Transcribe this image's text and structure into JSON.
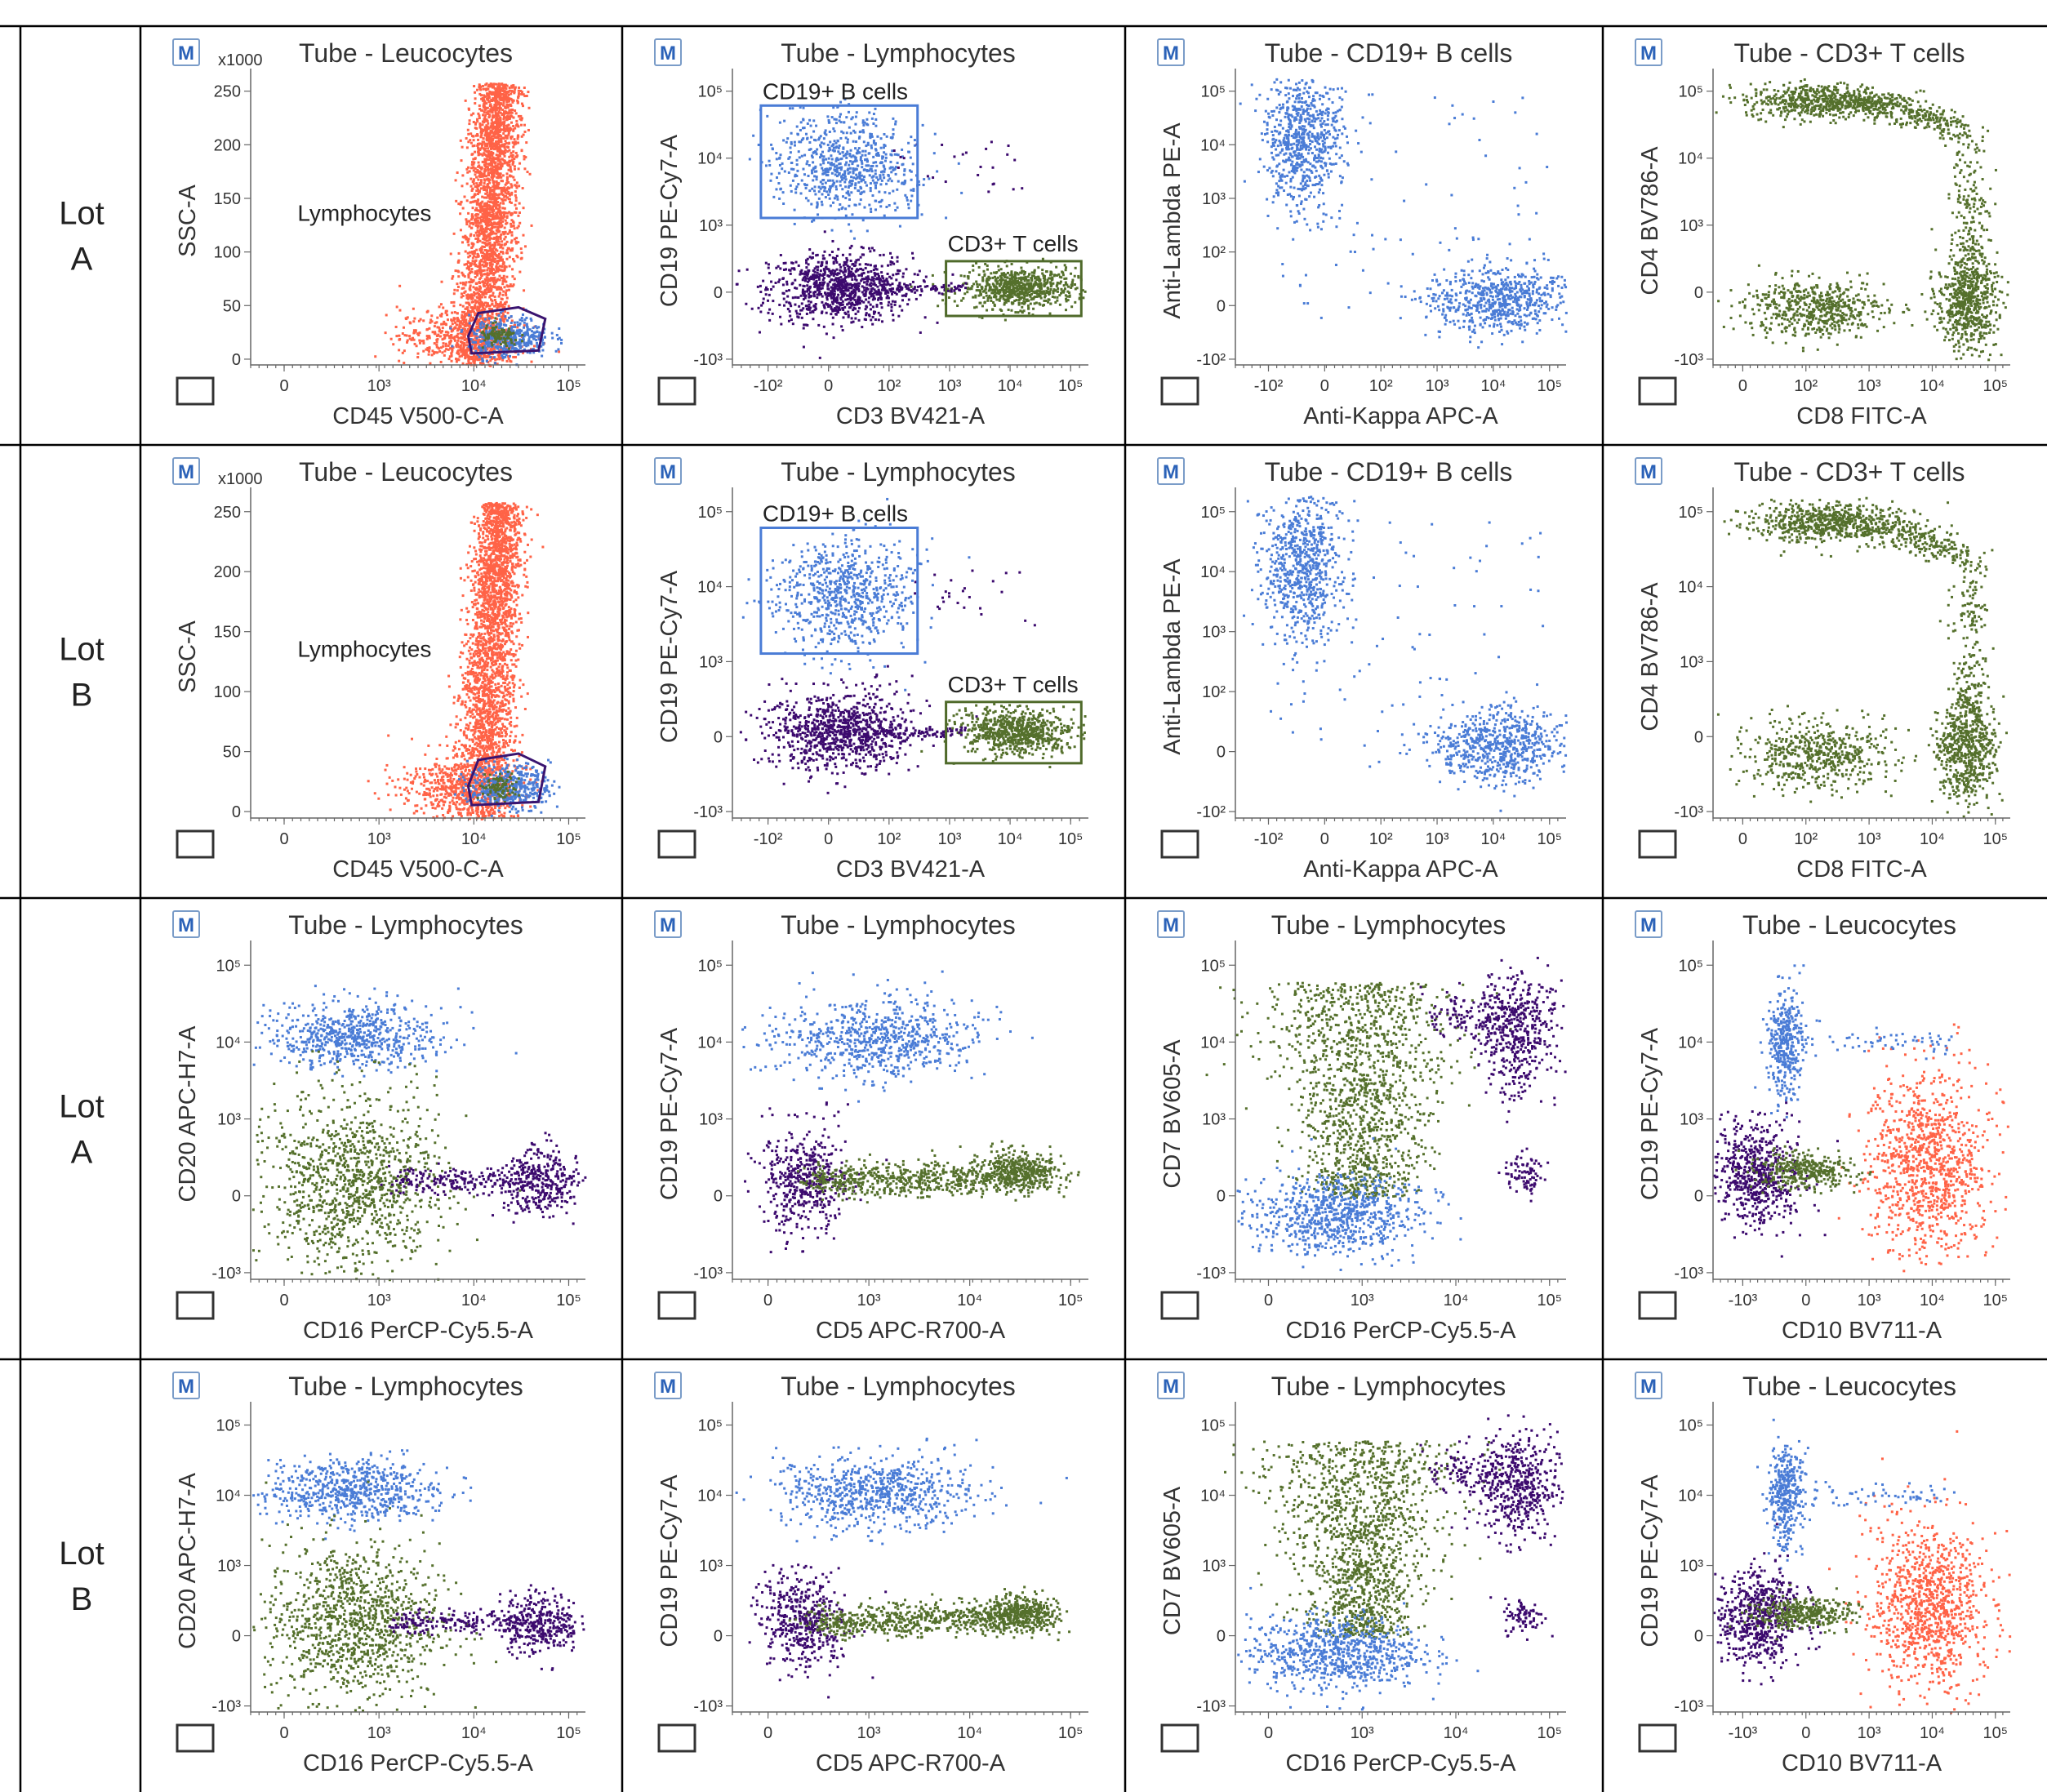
{
  "colors": {
    "leucocytes": "#ff6347",
    "b_cells": "#4a7cd6",
    "t_cells": "#55702c",
    "other": "#3c0a6e",
    "blue_gate": "#4a7cd6",
    "green_gate": "#4f6a2a",
    "purple_gate": "#3a1470",
    "m_badge": "#2b62b8"
  },
  "icons": {
    "m_badge": "M",
    "zoom": "zoom-frame-icon"
  },
  "rows": [
    {
      "lot_line1": "Lot",
      "lot_line2": "A"
    },
    {
      "lot_line1": "Lot",
      "lot_line2": "B"
    },
    {
      "lot_line1": "Lot",
      "lot_line2": "A"
    },
    {
      "lot_line1": "Lot",
      "lot_line2": "B"
    }
  ],
  "chart_data": [
    {
      "type": "scatter",
      "row": 0,
      "col": 0,
      "title": "Tube - Leucocytes",
      "xlabel": "CD45 V500-C-A",
      "ylabel": "SSC-A",
      "y_multiplier": "x1000",
      "x_ticks": [
        "0",
        "10³",
        "10⁴",
        "10⁵"
      ],
      "y_ticks": [
        "0",
        "50",
        "100",
        "150",
        "200",
        "250"
      ],
      "gates": [
        {
          "name": "Lymphocytes",
          "shape": "polygon",
          "color": "purple"
        }
      ],
      "series": [
        {
          "name": "Leucocytes",
          "color": "leucocytes"
        },
        {
          "name": "Lymphocytes",
          "color": "b_cells"
        }
      ]
    },
    {
      "type": "scatter",
      "row": 0,
      "col": 1,
      "title": "Tube - Lymphocytes",
      "xlabel": "CD3 BV421-A",
      "ylabel": "CD19 PE-Cy7-A",
      "x_ticks": [
        "-10²",
        "0",
        "10²",
        "10³",
        "10⁴",
        "10⁵"
      ],
      "y_ticks": [
        "-10³",
        "0",
        "10³",
        "10⁴",
        "10⁵"
      ],
      "gates": [
        {
          "name": "CD19+ B cells",
          "shape": "rect",
          "color": "blue"
        },
        {
          "name": "CD3+ T cells",
          "shape": "rect",
          "color": "green"
        }
      ]
    },
    {
      "type": "scatter",
      "row": 0,
      "col": 2,
      "title": "Tube - CD19+ B cells",
      "xlabel": "Anti-Kappa APC-A",
      "ylabel": "Anti-Lambda PE-A",
      "x_ticks": [
        "-10²",
        "0",
        "10²",
        "10³",
        "10⁴",
        "10⁵"
      ],
      "y_ticks": [
        "-10²",
        "0",
        "10²",
        "10³",
        "10⁴",
        "10⁵"
      ]
    },
    {
      "type": "scatter",
      "row": 0,
      "col": 3,
      "title": "Tube - CD3+ T cells",
      "xlabel": "CD8 FITC-A",
      "ylabel": "CD4 BV786-A",
      "x_ticks": [
        "0",
        "10²",
        "10³",
        "10⁴",
        "10⁵"
      ],
      "y_ticks": [
        "-10³",
        "0",
        "10³",
        "10⁴",
        "10⁵"
      ]
    },
    {
      "type": "scatter",
      "row": 1,
      "col": 0,
      "title": "Tube - Leucocytes",
      "xlabel": "CD45 V500-C-A",
      "ylabel": "SSC-A",
      "y_multiplier": "x1000",
      "x_ticks": [
        "0",
        "10³",
        "10⁴",
        "10⁵"
      ],
      "y_ticks": [
        "0",
        "50",
        "100",
        "150",
        "200",
        "250"
      ],
      "gates": [
        {
          "name": "Lymphocytes",
          "shape": "polygon",
          "color": "purple"
        }
      ]
    },
    {
      "type": "scatter",
      "row": 1,
      "col": 1,
      "title": "Tube - Lymphocytes",
      "xlabel": "CD3 BV421-A",
      "ylabel": "CD19 PE-Cy7-A",
      "x_ticks": [
        "-10²",
        "0",
        "10²",
        "10³",
        "10⁴",
        "10⁵"
      ],
      "y_ticks": [
        "-10³",
        "0",
        "10³",
        "10⁴",
        "10⁵"
      ],
      "gates": [
        {
          "name": "CD19+ B cells",
          "shape": "rect",
          "color": "blue"
        },
        {
          "name": "CD3+ T cells",
          "shape": "rect",
          "color": "green"
        }
      ]
    },
    {
      "type": "scatter",
      "row": 1,
      "col": 2,
      "title": "Tube - CD19+ B cells",
      "xlabel": "Anti-Kappa APC-A",
      "ylabel": "Anti-Lambda PE-A",
      "x_ticks": [
        "-10²",
        "0",
        "10²",
        "10³",
        "10⁴",
        "10⁵"
      ],
      "y_ticks": [
        "-10²",
        "0",
        "10²",
        "10³",
        "10⁴",
        "10⁵"
      ]
    },
    {
      "type": "scatter",
      "row": 1,
      "col": 3,
      "title": "Tube - CD3+ T cells",
      "xlabel": "CD8 FITC-A",
      "ylabel": "CD4 BV786-A",
      "x_ticks": [
        "0",
        "10²",
        "10³",
        "10⁴",
        "10⁵"
      ],
      "y_ticks": [
        "-10³",
        "0",
        "10³",
        "10⁴",
        "10⁵"
      ]
    },
    {
      "type": "scatter",
      "row": 2,
      "col": 0,
      "title": "Tube - Lymphocytes",
      "xlabel": "CD16 PerCP-Cy5.5-A",
      "ylabel": "CD20 APC-H7-A",
      "x_ticks": [
        "0",
        "10³",
        "10⁴",
        "10⁵"
      ],
      "y_ticks": [
        "-10³",
        "0",
        "10³",
        "10⁴",
        "10⁵"
      ]
    },
    {
      "type": "scatter",
      "row": 2,
      "col": 1,
      "title": "Tube - Lymphocytes",
      "xlabel": "CD5 APC-R700-A",
      "ylabel": "CD19 PE-Cy7-A",
      "x_ticks": [
        "0",
        "10³",
        "10⁴",
        "10⁵"
      ],
      "y_ticks": [
        "-10³",
        "0",
        "10³",
        "10⁴",
        "10⁵"
      ]
    },
    {
      "type": "scatter",
      "row": 2,
      "col": 2,
      "title": "Tube - Lymphocytes",
      "xlabel": "CD16 PerCP-Cy5.5-A",
      "ylabel": "CD7 BV605-A",
      "x_ticks": [
        "0",
        "10³",
        "10⁴",
        "10⁵"
      ],
      "y_ticks": [
        "-10³",
        "0",
        "10³",
        "10⁴",
        "10⁵"
      ]
    },
    {
      "type": "scatter",
      "row": 2,
      "col": 3,
      "title": "Tube - Leucocytes",
      "xlabel": "CD10 BV711-A",
      "ylabel": "CD19 PE-Cy7-A",
      "x_ticks": [
        "-10³",
        "0",
        "10³",
        "10⁴",
        "10⁵"
      ],
      "y_ticks": [
        "-10³",
        "0",
        "10³",
        "10⁴",
        "10⁵"
      ]
    },
    {
      "type": "scatter",
      "row": 3,
      "col": 0,
      "title": "Tube - Lymphocytes",
      "xlabel": "CD16 PerCP-Cy5.5-A",
      "ylabel": "CD20 APC-H7-A",
      "x_ticks": [
        "0",
        "10³",
        "10⁴",
        "10⁵"
      ],
      "y_ticks": [
        "-10³",
        "0",
        "10³",
        "10⁴",
        "10⁵"
      ]
    },
    {
      "type": "scatter",
      "row": 3,
      "col": 1,
      "title": "Tube - Lymphocytes",
      "xlabel": "CD5 APC-R700-A",
      "ylabel": "CD19 PE-Cy7-A",
      "x_ticks": [
        "0",
        "10³",
        "10⁴",
        "10⁵"
      ],
      "y_ticks": [
        "-10³",
        "0",
        "10³",
        "10⁴",
        "10⁵"
      ]
    },
    {
      "type": "scatter",
      "row": 3,
      "col": 2,
      "title": "Tube - Lymphocytes",
      "xlabel": "CD16 PerCP-Cy5.5-A",
      "ylabel": "CD7 BV605-A",
      "x_ticks": [
        "0",
        "10³",
        "10⁴",
        "10⁵"
      ],
      "y_ticks": [
        "-10³",
        "0",
        "10³",
        "10⁴",
        "10⁵"
      ]
    },
    {
      "type": "scatter",
      "row": 3,
      "col": 3,
      "title": "Tube - Leucocytes",
      "xlabel": "CD10 BV711-A",
      "ylabel": "CD19 PE-Cy7-A",
      "x_ticks": [
        "-10³",
        "0",
        "10³",
        "10⁴",
        "10⁵"
      ],
      "y_ticks": [
        "-10³",
        "0",
        "10³",
        "10⁴",
        "10⁵"
      ]
    }
  ]
}
